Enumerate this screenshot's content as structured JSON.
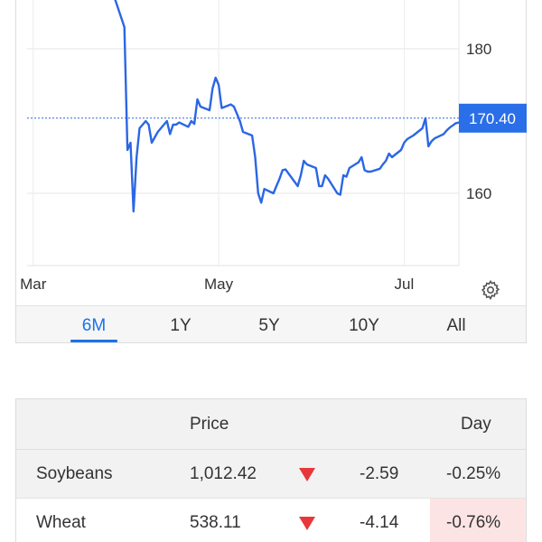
{
  "chart": {
    "last_price_label": "170.40",
    "y_ticks": [
      "180",
      "160"
    ],
    "x_ticks": [
      "Mar",
      "May",
      "Jul"
    ],
    "line_color": "#2b66e4",
    "badge_color": "#2a6ee8"
  },
  "chart_data": {
    "type": "line",
    "title": "",
    "xlabel": "",
    "ylabel": "",
    "y_axis_side": "right",
    "ylim": [
      150,
      187
    ],
    "grid": true,
    "last_value": 170.4,
    "x_tick_labels": [
      "Mar",
      "May",
      "Jul"
    ],
    "y_tick_labels": [
      "180",
      "160"
    ],
    "series": [
      {
        "x": [
          "Mar 28",
          "Apr 1",
          "Apr 2",
          "Apr 3",
          "Apr 4",
          "Apr 5",
          "Apr 6",
          "Apr 8",
          "Apr 9",
          "Apr 10",
          "Apr 12",
          "Apr 15",
          "Apr 16",
          "Apr 17",
          "Apr 18",
          "Apr 19",
          "Apr 22",
          "Apr 23",
          "Apr 24",
          "Apr 25",
          "Apr 26",
          "Apr 29",
          "Apr 30",
          "May 1",
          "May 2",
          "May 3",
          "May 6",
          "May 7",
          "May 8",
          "May 9",
          "May 10",
          "May 13",
          "May 14",
          "May 15",
          "May 16",
          "May 17",
          "May 20",
          "May 21",
          "May 22",
          "May 23",
          "May 24",
          "May 28",
          "May 29",
          "May 30",
          "May 31",
          "Jun 3",
          "Jun 4",
          "Jun 5",
          "Jun 6",
          "Jun 7",
          "Jun 10",
          "Jun 11",
          "Jun 12",
          "Jun 13",
          "Jun 14",
          "Jun 17",
          "Jun 18",
          "Jun 19",
          "Jun 20",
          "Jun 21",
          "Jun 24",
          "Jun 25",
          "Jun 26",
          "Jun 27",
          "Jun 28",
          "Jul 1",
          "Jul 2",
          "Jul 3",
          "Jul 5",
          "Jul 8",
          "Jul 9",
          "Jul 10",
          "Jul 11",
          "Jul 12",
          "Jul 15",
          "Jul 16",
          "Jul 17",
          "Jul 18",
          "Jul 19",
          "Jul 22",
          "Jul 23",
          "Jul 24",
          "Jul 25",
          "Jul 26",
          "Jul 29",
          "Jul 30"
        ],
        "values": [
          188,
          183,
          166,
          167,
          157.5,
          165,
          169,
          170,
          169.5,
          167,
          168.5,
          170,
          168.2,
          169.5,
          169.5,
          169.8,
          169.2,
          170,
          169.6,
          173,
          172,
          171.5,
          174.5,
          176,
          175,
          171.8,
          172.3,
          172,
          171,
          170,
          168.5,
          168,
          165,
          160,
          158.7,
          160.6,
          160,
          161,
          162,
          163.2,
          163.3,
          161,
          162.5,
          164.5,
          164,
          163.5,
          161,
          161,
          162.5,
          162,
          160,
          159.8,
          162.5,
          162.3,
          163.5,
          164.3,
          165,
          163.2,
          163,
          163,
          163.4,
          164,
          164.5,
          165.5,
          165,
          166,
          167,
          167.5,
          168,
          169,
          170.4,
          166.5,
          167.2,
          167.6,
          168.2,
          168.7,
          169.1,
          169.4,
          169.7,
          170.0,
          170.2,
          170.3,
          170.35,
          170.38,
          170.39,
          170.4
        ]
      }
    ]
  },
  "tabs": [
    {
      "label": "6M",
      "active": true
    },
    {
      "label": "1Y"
    },
    {
      "label": "5Y"
    },
    {
      "label": "10Y"
    },
    {
      "label": "All"
    }
  ],
  "table": {
    "headers": {
      "price": "Price",
      "day": "Day"
    },
    "rows": [
      {
        "name": "Soybeans",
        "price": "1,012.42",
        "change": "-2.59",
        "pct": "-0.25%"
      },
      {
        "name": "Wheat",
        "price": "538.11",
        "change": "-4.14",
        "pct": "-0.76%"
      }
    ],
    "down_color": "#e8373a",
    "highlight_color": "#fde4e4"
  }
}
